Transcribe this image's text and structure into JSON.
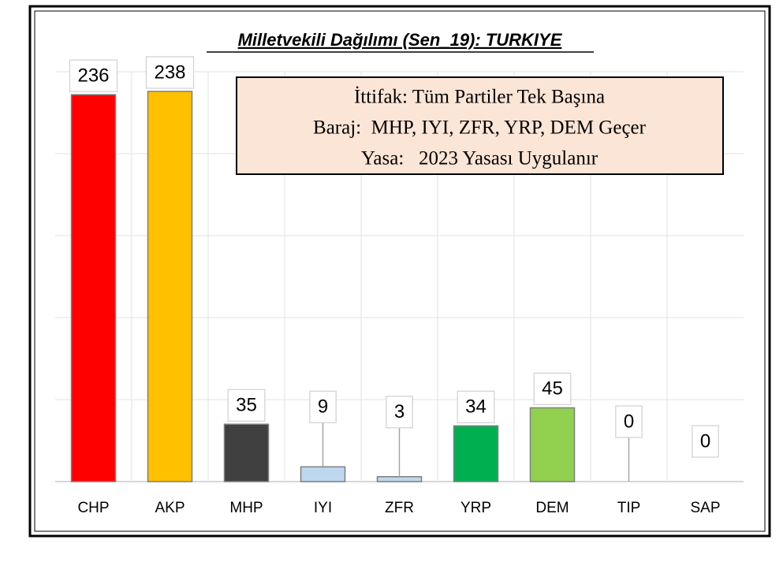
{
  "chart_data": {
    "type": "bar",
    "title": "Milletvekili Dağılımı (Sen_19): TURKIYE",
    "annotations": [
      "İttifak: Tüm Partiler Tek Başına",
      "Baraj:  MHP, IYI, ZFR, YRP, DEM Geçer",
      "Yasa:   2023 Yasası Uygulanır"
    ],
    "categories": [
      "CHP",
      "AKP",
      "MHP",
      "IYI",
      "ZFR",
      "YRP",
      "DEM",
      "TIP",
      "SAP"
    ],
    "values": [
      236,
      238,
      35,
      9,
      3,
      34,
      45,
      0,
      0
    ],
    "colors": [
      "#ff0000",
      "#ffc000",
      "#404040",
      "#bdd7ee",
      "#bdd7ee",
      "#00b050",
      "#92d050",
      "#ffffff",
      "#ffffff"
    ],
    "ylim": [
      0,
      250
    ],
    "yticks": [
      0,
      50,
      100,
      150,
      200,
      250
    ],
    "grid": true
  }
}
